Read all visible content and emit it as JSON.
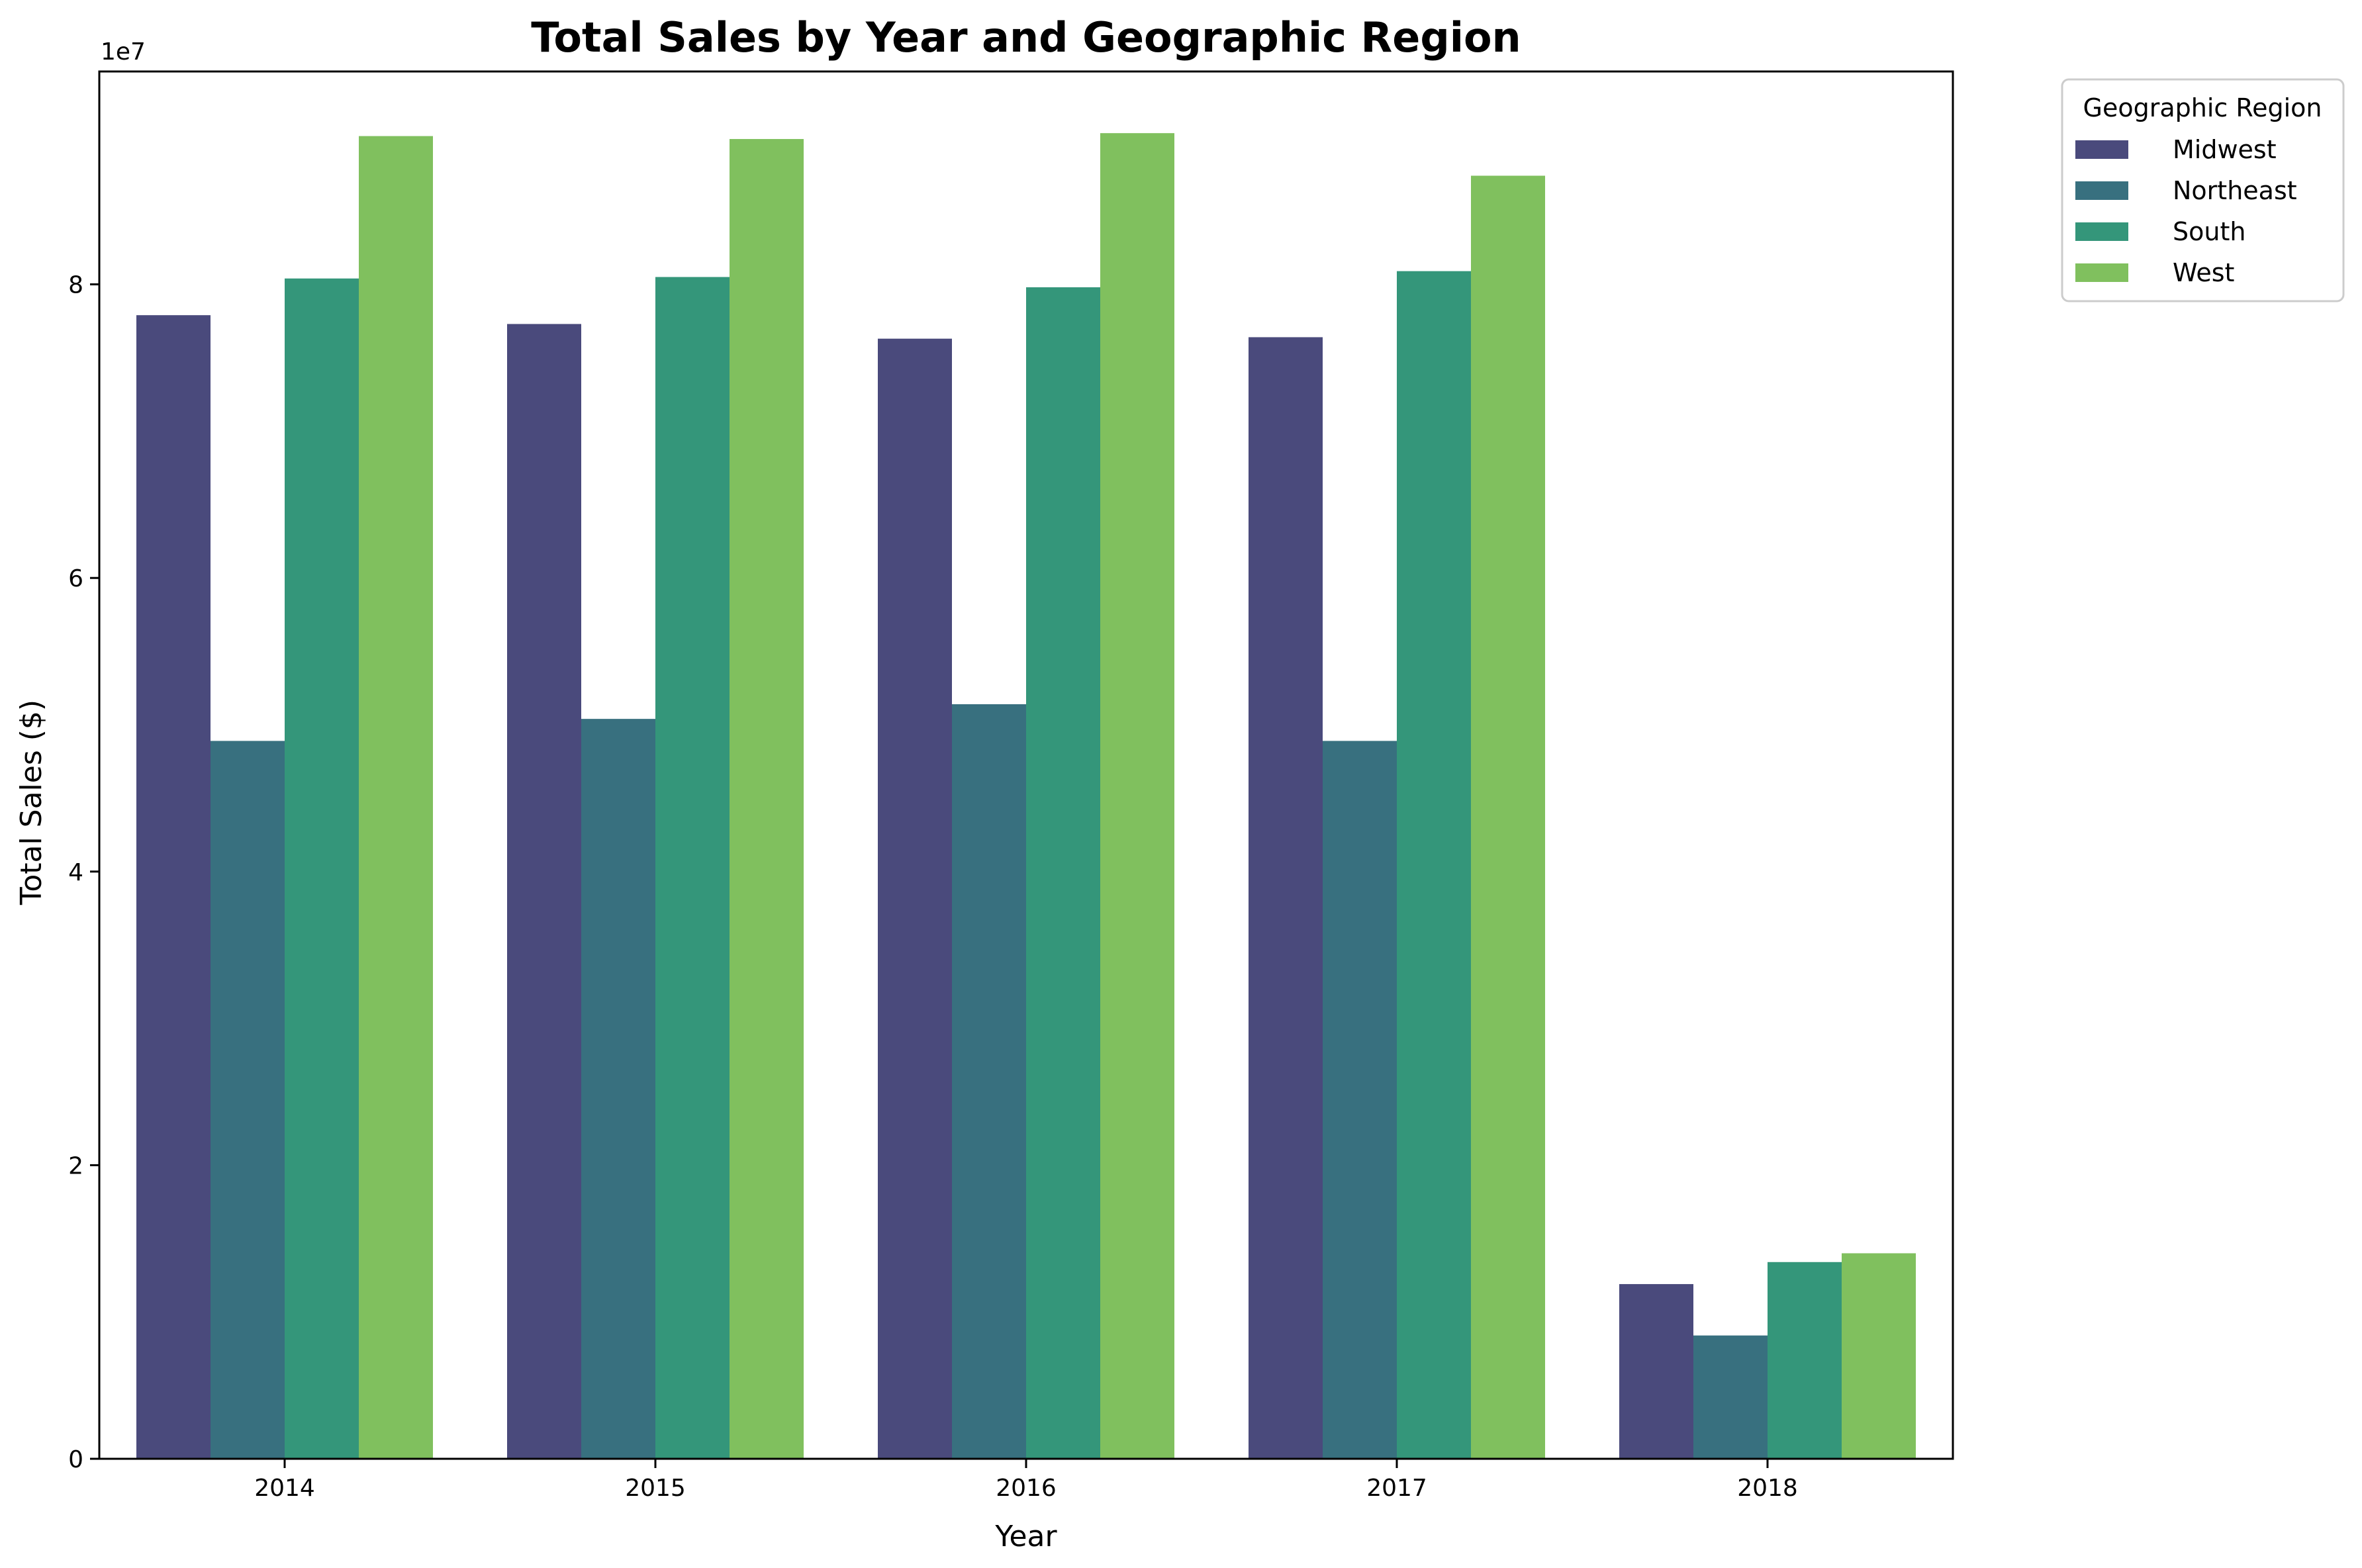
{
  "chart_data": {
    "type": "bar",
    "title": "Total Sales by Year and Geographic Region",
    "xlabel": "Year",
    "ylabel": "Total Sales ($)",
    "y_offset_label": "1e7",
    "categories": [
      "2014",
      "2015",
      "2016",
      "2017",
      "2018"
    ],
    "yticks": [
      0,
      2,
      4,
      6,
      8
    ],
    "ylim": [
      0,
      9.45
    ],
    "grid": false,
    "legend": {
      "title": "Geographic Region",
      "placement": "outside-top-right"
    },
    "series": [
      {
        "name": "Midwest",
        "color": "#4a4a7c",
        "values": [
          7.79,
          7.73,
          7.63,
          7.64,
          1.19
        ]
      },
      {
        "name": "Northeast",
        "color": "#38707f",
        "values": [
          4.89,
          5.04,
          5.14,
          4.89,
          0.84
        ]
      },
      {
        "name": "South",
        "color": "#34967a",
        "values": [
          8.04,
          8.05,
          7.98,
          8.09,
          1.34
        ]
      },
      {
        "name": "West",
        "color": "#80c05e",
        "values": [
          9.01,
          8.99,
          9.03,
          8.74,
          1.4
        ]
      }
    ]
  }
}
